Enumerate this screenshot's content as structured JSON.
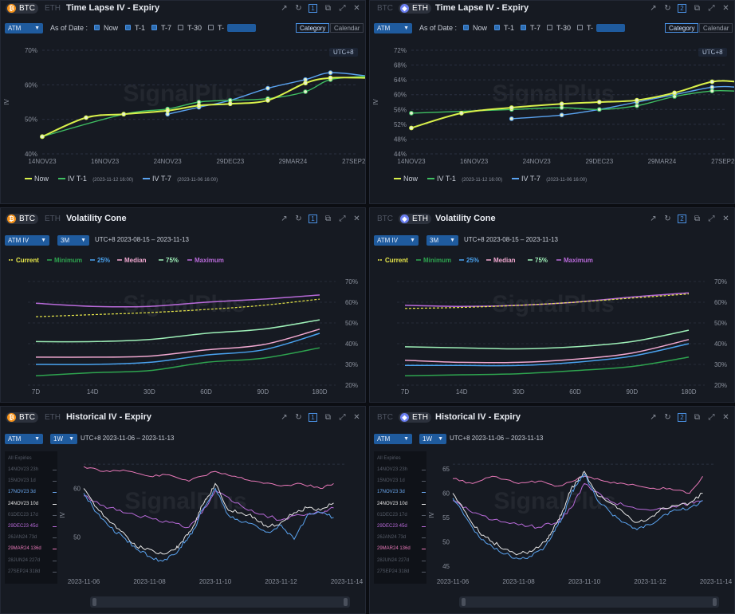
{
  "colors": {
    "now": "#d9f14b",
    "t1": "#3fbf62",
    "t7": "#5aa3f0",
    "current": "#e8e84a",
    "minimum": "#2ea44f",
    "p25": "#4aa3f0",
    "median": "#f0a8d0",
    "p75": "#9ef0b8",
    "maximum": "#b86ad9",
    "btc": "#f7931a",
    "eth": "#6a7ef0",
    "white": "#e6e6e6",
    "pink": "#e878b8",
    "purple": "#b86ad9",
    "blue": "#5aa3f0"
  },
  "watermark": "SignalPlus",
  "ui": {
    "category": "Category",
    "calendar": "Calendar",
    "as_of_date": "As of Date :",
    "now": "Now",
    "t1": "T-1",
    "t7": "T-7",
    "t30": "T-30",
    "t_more": "T-",
    "utc": "UTC+8",
    "atm": "ATM",
    "atm_iv": "ATM IV",
    "period": "3M",
    "hist_period": "1W",
    "all_expiries": "All Expiries",
    "btc": "BTC",
    "eth": "ETH"
  },
  "panels": [
    {
      "id": "p1",
      "coin": "BTC",
      "title": "Time Lapse IV - Expiry",
      "num": "1"
    },
    {
      "id": "p2",
      "coin": "ETH",
      "title": "Time Lapse IV - Expiry",
      "num": "2"
    },
    {
      "id": "p3",
      "coin": "BTC",
      "title": "Volatility Cone",
      "num": "1",
      "range": "UTC+8 2023-08-15 – 2023-11-13"
    },
    {
      "id": "p4",
      "coin": "ETH",
      "title": "Volatility Cone",
      "num": "2",
      "range": "UTC+8 2023-08-15 – 2023-11-13"
    },
    {
      "id": "p5",
      "coin": "BTC",
      "title": "Historical IV - Expiry",
      "num": "1",
      "range": "UTC+8 2023-11-06 – 2023-11-13"
    },
    {
      "id": "p6",
      "coin": "ETH",
      "title": "Historical IV - Expiry",
      "num": "2",
      "range": "UTC+8 2023-11-06 – 2023-11-13"
    }
  ],
  "sidebar_btc": [
    {
      "label": "14NOV23 23h",
      "c": "#565c68"
    },
    {
      "label": "15NOV23 1d",
      "c": "#565c68"
    },
    {
      "label": "17NOV23 3d",
      "c": "#6aa8f0"
    },
    {
      "label": "24NOV23 10d",
      "c": "#e6e6e6"
    },
    {
      "label": "01DEC23 17d",
      "c": "#565c68"
    },
    {
      "label": "29DEC23 45d",
      "c": "#b86ad9"
    },
    {
      "label": "26JAN24 73d",
      "c": "#565c68"
    },
    {
      "label": "29MAR24 136d",
      "c": "#e878b8"
    },
    {
      "label": "28JUN24 227d",
      "c": "#565c68"
    },
    {
      "label": "27SEP24 318d",
      "c": "#565c68"
    }
  ],
  "sidebar_eth": [
    {
      "label": "14NOV23 23h",
      "c": "#565c68"
    },
    {
      "label": "15NOV23 1d",
      "c": "#565c68"
    },
    {
      "label": "17NOV23 3d",
      "c": "#6aa8f0"
    },
    {
      "label": "24NOV23 10d",
      "c": "#e6e6e6"
    },
    {
      "label": "01DEC23 17d",
      "c": "#565c68"
    },
    {
      "label": "29DEC23 45d",
      "c": "#b86ad9"
    },
    {
      "label": "26JAN24 73d",
      "c": "#565c68"
    },
    {
      "label": "29MAR24 136d",
      "c": "#e878b8"
    },
    {
      "label": "28JUN24 227d",
      "c": "#565c68"
    },
    {
      "label": "27SEP24 318d",
      "c": "#565c68"
    }
  ],
  "chart_data": [
    {
      "id": "btc_timelapse",
      "type": "line",
      "categories": [
        "14NOV23",
        "16NOV23",
        "24NOV23",
        "29DEC23",
        "29MAR24",
        "27SEP24"
      ],
      "ylabel": "IV",
      "yticks": [
        "70%",
        "60%",
        "50%",
        "40%"
      ],
      "ylim": [
        40,
        70
      ],
      "legend": [
        {
          "name": "Now",
          "sub": ""
        },
        {
          "name": "IV T-1",
          "sub": "(2023-11-12 16:00)"
        },
        {
          "name": "IV T-7",
          "sub": "(2023-11-06 16:00)"
        }
      ],
      "series": [
        {
          "key": "now",
          "x": [
            0,
            0.7,
            1.3,
            2.0,
            2.5,
            3.0,
            3.6,
            4.2,
            4.6,
            5.2
          ],
          "values": [
            45,
            50.5,
            51.5,
            52.5,
            54.0,
            54.5,
            55.5,
            60.5,
            62.0,
            62.0
          ]
        },
        {
          "key": "t1",
          "x": [
            0,
            1.3,
            2.0,
            2.5,
            3.0,
            3.6,
            4.2,
            4.6,
            5.2
          ],
          "values": [
            45,
            51.5,
            53.0,
            55.0,
            55.5,
            56.0,
            58.0,
            61.5,
            62.5
          ]
        },
        {
          "key": "t7",
          "x": [
            2.0,
            2.5,
            3.0,
            3.6,
            4.2,
            4.6,
            5.2
          ],
          "values": [
            51.5,
            53.5,
            55.5,
            59.0,
            61.5,
            63.5,
            62.5
          ]
        }
      ]
    },
    {
      "id": "eth_timelapse",
      "type": "line",
      "categories": [
        "14NOV23",
        "16NOV23",
        "24NOV23",
        "29DEC23",
        "29MAR24",
        "27SEP24"
      ],
      "ylabel": "IV",
      "yticks": [
        "72%",
        "68%",
        "64%",
        "60%",
        "56%",
        "52%",
        "48%",
        "44%"
      ],
      "ylim": [
        44,
        72
      ],
      "legend": [
        {
          "name": "Now",
          "sub": ""
        },
        {
          "name": "IV T-1",
          "sub": "(2023-11-12 16:00)"
        },
        {
          "name": "IV T-7",
          "sub": "(2023-11-06 16:00)"
        }
      ],
      "series": [
        {
          "key": "now",
          "x": [
            0,
            0.8,
            1.6,
            2.4,
            3.0,
            3.6,
            4.2,
            4.8,
            5.2,
            5.5
          ],
          "values": [
            51.0,
            55.0,
            56.5,
            57.5,
            58.0,
            58.5,
            60.5,
            63.5,
            63.5,
            63.0
          ]
        },
        {
          "key": "t1",
          "x": [
            0,
            1.6,
            2.4,
            3.0,
            3.6,
            4.2,
            4.8,
            5.2,
            5.5
          ],
          "values": [
            55.0,
            56.0,
            56.5,
            56.0,
            57.0,
            59.5,
            61.0,
            61.0,
            61.5
          ]
        },
        {
          "key": "t7",
          "x": [
            1.6,
            2.4,
            3.0,
            3.6,
            4.2,
            4.8,
            5.2,
            5.5
          ],
          "values": [
            53.5,
            54.5,
            56.0,
            58.0,
            60.0,
            62.0,
            62.0,
            61.0
          ]
        }
      ]
    },
    {
      "id": "btc_cone",
      "type": "line",
      "categories": [
        "7D",
        "14D",
        "30D",
        "60D",
        "90D",
        "180D"
      ],
      "yticks": [
        "70%",
        "60%",
        "50%",
        "40%",
        "30%",
        "20%"
      ],
      "ylim": [
        20,
        70
      ],
      "legend": [
        {
          "key": "current",
          "name": "Current"
        },
        {
          "key": "minimum",
          "name": "Minimum"
        },
        {
          "key": "p25",
          "name": "25%"
        },
        {
          "key": "median",
          "name": "Median"
        },
        {
          "key": "p75",
          "name": "75%"
        },
        {
          "key": "maximum",
          "name": "Maximum"
        }
      ],
      "series": [
        {
          "key": "maximum",
          "values": [
            59.5,
            58.0,
            58.0,
            60.0,
            61.5,
            63.5
          ]
        },
        {
          "key": "current",
          "values": [
            53.0,
            54.0,
            55.0,
            56.5,
            58.5,
            61.5
          ]
        },
        {
          "key": "p75",
          "values": [
            41.0,
            41.0,
            42.0,
            45.0,
            47.0,
            51.5
          ]
        },
        {
          "key": "median",
          "values": [
            33.5,
            33.5,
            34.0,
            37.0,
            39.5,
            47.0
          ]
        },
        {
          "key": "p25",
          "values": [
            30.0,
            30.0,
            31.0,
            34.5,
            37.0,
            45.0
          ]
        },
        {
          "key": "minimum",
          "values": [
            24.5,
            26.0,
            27.0,
            31.0,
            33.0,
            38.0
          ]
        }
      ]
    },
    {
      "id": "eth_cone",
      "type": "line",
      "categories": [
        "7D",
        "14D",
        "30D",
        "60D",
        "90D",
        "180D"
      ],
      "yticks": [
        "70%",
        "60%",
        "50%",
        "40%",
        "30%",
        "20%"
      ],
      "ylim": [
        20,
        70
      ],
      "legend": [
        {
          "key": "current",
          "name": "Current"
        },
        {
          "key": "minimum",
          "name": "Minimum"
        },
        {
          "key": "p25",
          "name": "25%"
        },
        {
          "key": "median",
          "name": "Median"
        },
        {
          "key": "p75",
          "name": "75%"
        },
        {
          "key": "maximum",
          "name": "Maximum"
        }
      ],
      "series": [
        {
          "key": "maximum",
          "values": [
            58.5,
            58.0,
            58.5,
            60.0,
            62.5,
            64.5
          ]
        },
        {
          "key": "current",
          "values": [
            57.0,
            57.5,
            58.5,
            60.0,
            62.0,
            64.0
          ]
        },
        {
          "key": "p75",
          "values": [
            38.5,
            38.0,
            37.5,
            38.5,
            41.0,
            46.5
          ]
        },
        {
          "key": "median",
          "values": [
            32.0,
            31.0,
            31.0,
            32.5,
            35.5,
            42.0
          ]
        },
        {
          "key": "p25",
          "values": [
            29.5,
            29.5,
            29.5,
            31.0,
            34.0,
            40.0
          ]
        },
        {
          "key": "minimum",
          "values": [
            24.5,
            25.0,
            25.5,
            27.0,
            29.0,
            33.5
          ]
        }
      ]
    },
    {
      "id": "btc_hist",
      "type": "line",
      "xticks": [
        "2023-11-06",
        "2023-11-08",
        "2023-11-10",
        "2023-11-12",
        "2023-11-14"
      ],
      "ylabel": "IV",
      "yticks": [
        "60",
        "50"
      ],
      "ylim": [
        43,
        66
      ],
      "series": [
        {
          "key": "pink",
          "x": [
            0,
            0.3,
            0.6,
            1.0,
            1.3,
            1.6,
            2.0,
            2.3,
            2.6,
            3.0,
            3.3,
            3.6,
            3.8
          ],
          "values": [
            64.5,
            63.5,
            63.8,
            62.5,
            62.8,
            61.5,
            63.5,
            62.5,
            61.5,
            60.5,
            61.0,
            60.0,
            61.0
          ]
        },
        {
          "key": "purple",
          "x": [
            0,
            0.3,
            0.6,
            1.0,
            1.3,
            1.6,
            1.8,
            2.0,
            2.3,
            2.6,
            3.0,
            3.3,
            3.6,
            3.8
          ],
          "values": [
            58.5,
            56.5,
            55.0,
            54.0,
            53.0,
            52.0,
            55.0,
            59.5,
            57.0,
            55.0,
            53.5,
            54.5,
            55.0,
            56.0
          ]
        },
        {
          "key": "white",
          "x": [
            0,
            0.2,
            0.4,
            0.6,
            0.8,
            1.0,
            1.2,
            1.4,
            1.5,
            1.6,
            1.7,
            1.8,
            1.9,
            2.0,
            2.2,
            2.4,
            2.6,
            2.8,
            3.0,
            3.2,
            3.4,
            3.6,
            3.8
          ],
          "values": [
            60.0,
            56.0,
            53.0,
            51.0,
            48.0,
            47.5,
            46.5,
            47.5,
            49.0,
            51.0,
            53.0,
            56.5,
            58.5,
            61.0,
            55.5,
            55.0,
            54.0,
            52.0,
            53.0,
            55.0,
            56.0,
            55.5,
            57.0
          ]
        },
        {
          "key": "blue",
          "x": [
            0,
            0.2,
            0.4,
            0.6,
            0.8,
            1.0,
            1.2,
            1.4,
            1.5,
            1.6,
            1.7,
            1.8,
            1.9,
            2.0,
            2.2,
            2.4,
            2.6,
            2.8,
            3.0,
            3.2,
            3.4,
            3.6,
            3.8
          ],
          "values": [
            59.0,
            55.0,
            52.0,
            50.0,
            47.5,
            46.0,
            45.0,
            46.5,
            48.5,
            50.0,
            52.0,
            55.5,
            57.5,
            60.0,
            54.5,
            53.0,
            52.5,
            51.0,
            52.5,
            49.5,
            54.5,
            55.0,
            54.0
          ]
        }
      ]
    },
    {
      "id": "eth_hist",
      "type": "line",
      "xticks": [
        "2023-11-06",
        "2023-11-08",
        "2023-11-10",
        "2023-11-12",
        "2023-11-14"
      ],
      "ylabel": "IV",
      "yticks": [
        "65",
        "60",
        "55",
        "50",
        "45"
      ],
      "ylim": [
        44,
        67
      ],
      "series": [
        {
          "key": "pink",
          "x": [
            0,
            0.3,
            0.6,
            1.0,
            1.3,
            1.6,
            2.0,
            2.3,
            2.6,
            3.0,
            3.3,
            3.6,
            3.8
          ],
          "values": [
            63.0,
            62.0,
            63.5,
            62.0,
            62.5,
            61.5,
            63.5,
            62.5,
            62.0,
            61.0,
            61.0,
            60.0,
            63.5
          ]
        },
        {
          "key": "purple",
          "x": [
            0,
            0.3,
            0.6,
            1.0,
            1.3,
            1.6,
            1.8,
            2.0,
            2.3,
            2.6,
            3.0,
            3.3,
            3.6,
            3.8
          ],
          "values": [
            58.5,
            56.0,
            54.5,
            53.5,
            53.0,
            54.0,
            57.0,
            62.0,
            59.0,
            57.5,
            56.5,
            57.0,
            58.0,
            58.5
          ]
        },
        {
          "key": "white",
          "x": [
            0,
            0.2,
            0.4,
            0.6,
            0.8,
            1.0,
            1.2,
            1.4,
            1.5,
            1.6,
            1.7,
            1.8,
            1.9,
            2.0,
            2.2,
            2.4,
            2.6,
            2.8,
            3.0,
            3.2,
            3.4,
            3.6,
            3.8
          ],
          "values": [
            60.0,
            56.0,
            52.0,
            50.0,
            48.5,
            47.5,
            48.0,
            50.0,
            52.0,
            54.5,
            57.0,
            61.0,
            62.5,
            64.5,
            59.5,
            58.0,
            56.0,
            54.0,
            55.0,
            57.0,
            57.5,
            58.0,
            60.0
          ]
        },
        {
          "key": "blue",
          "x": [
            0,
            0.2,
            0.4,
            0.6,
            0.8,
            1.0,
            1.2,
            1.4,
            1.5,
            1.6,
            1.7,
            1.8,
            1.9,
            2.0,
            2.2,
            2.4,
            2.6,
            2.8,
            3.0,
            3.2,
            3.4,
            3.6,
            3.8
          ],
          "values": [
            59.0,
            55.0,
            51.0,
            49.0,
            47.5,
            46.5,
            47.0,
            49.0,
            51.0,
            53.5,
            56.0,
            60.0,
            62.0,
            64.0,
            58.5,
            56.0,
            54.0,
            52.5,
            53.5,
            55.5,
            56.5,
            57.0,
            58.5
          ]
        }
      ]
    }
  ]
}
